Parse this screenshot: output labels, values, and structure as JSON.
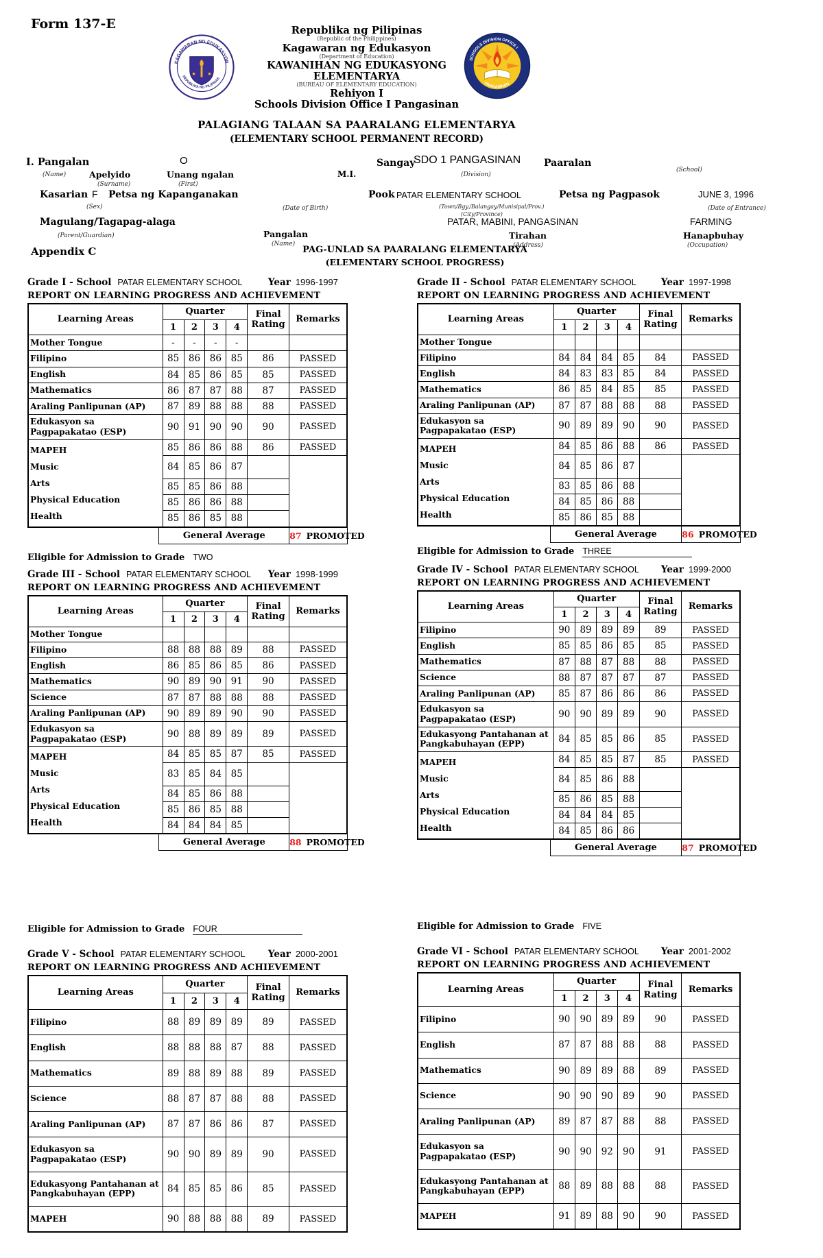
{
  "header": {
    "form_no": "Form 137-E",
    "line1": "Republika ng Pilipinas",
    "line1_sub": "(Republic of the Philippines)",
    "line2": "Kagawaran ng Edukasyon",
    "line2_sub": "(Department of Education)",
    "line3": "KAWANIHAN NG EDUKASYONG ELEMENTARYA",
    "line3_sub": "(BUREAU OF ELEMENTARY EDUCATION)",
    "line4": "Rehiyon I",
    "line5": "Schools Division Office I Pangasinan",
    "title1": "PALAGIANG TALAAN SA PAARALANG ELEMENTARYA",
    "title2": "(ELEMENTARY SCHOOL PERMANENT RECORD)",
    "left_seal_top": "KAGAWARAN NG EDUKASYON",
    "left_seal_bottom": "REPUBLIKA NG PILIPINAS",
    "right_seal_top": "SCHOOLS DIVISION OFFICE I",
    "right_seal_bottom": "PANGASINAN"
  },
  "student": {
    "pangalan_label": "I. Pangalan",
    "name_sub": "(Name)",
    "apelyido_label": "Apelyido",
    "surname_sub": "(Surname)",
    "first_name_value": "O",
    "unang_ngalan_label": "Unang ngalan",
    "first_sub": "(First)",
    "mi_label": "M.I.",
    "sangay_label": "Sangay",
    "division_value": "SDO 1 PANGASINAN",
    "division_sub": "(Division)",
    "paaralan_label": "Paaralan",
    "school_sub": "(School)",
    "kasarian_label": "Kasarian",
    "sex_value": "F",
    "sex_sub": "(Sex)",
    "birthdate_label": "Petsa ng Kapanganakan",
    "birthdate_sub": "(Date of Birth)",
    "pook_label": "Pook",
    "pook_value": "PATAR ELEMENTARY SCHOOL",
    "pook_sub1": "(Town/Bgy./Balangay/Munisipal/Prov.)",
    "pook_sub2": "(City/Province)",
    "entrance_label": "Petsa ng Pagpasok",
    "entrance_value": "JUNE 3, 1996",
    "entrance_sub": "(Date of Entrance)",
    "guardian_label": "Magulang/Tagapag-alaga",
    "guardian_sub": "(Parent/Guardian)",
    "guardian_name_label": "Pangalan",
    "guardian_name_sub": "(Name)",
    "address_value": "PATAR, MABINI, PANGASINAN",
    "address_label": "Tirahan",
    "address_sub": "(Address)",
    "occupation_value": "FARMING",
    "occupation_label": "Hanapbuhay",
    "occupation_sub": "(Occupation)"
  },
  "progress": {
    "appendix": "Appendix C",
    "title1": "PAG-UNLAD SA PAARALANG ELEMENTARYA",
    "title2": "(ELEMENTARY SCHOOL PROGRESS)"
  },
  "table_headers": {
    "learning_areas": "Learning Areas",
    "quarter": "Quarter",
    "quarter_cols": [
      "1",
      "2",
      "3",
      "4"
    ],
    "final_rating": [
      "Final",
      "Rating"
    ],
    "remarks": "Remarks",
    "general_average": "General Average"
  },
  "grades": [
    {
      "label": "Grade I - School",
      "school": "PATAR ELEMENTARY SCHOOL",
      "year_label": "Year",
      "year": "1996-1997",
      "report_title": "REPORT ON LEARNING PROGRESS AND ACHIEVEMENT",
      "rows": [
        {
          "area": "Mother Tongue",
          "q": [
            "-",
            "-",
            "-",
            "-"
          ],
          "final": "",
          "remarks": ""
        },
        {
          "area": "Filipino",
          "q": [
            "85",
            "86",
            "86",
            "85"
          ],
          "final": "86",
          "remarks": "PASSED"
        },
        {
          "area": "English",
          "q": [
            "84",
            "85",
            "86",
            "85"
          ],
          "final": "85",
          "remarks": "PASSED"
        },
        {
          "area": "Mathematics",
          "q": [
            "86",
            "87",
            "87",
            "88"
          ],
          "final": "87",
          "remarks": "PASSED"
        },
        {
          "area": "Araling Panlipunan (AP)",
          "q": [
            "87",
            "89",
            "88",
            "88"
          ],
          "final": "88",
          "remarks": "PASSED"
        },
        {
          "area": "Edukasyon sa Pagpapakatao (ESP)",
          "q": [
            "90",
            "91",
            "90",
            "90"
          ],
          "final": "90",
          "remarks": "PASSED"
        }
      ],
      "mapeh_block": {
        "labels": [
          "MAPEH",
          "Music",
          "Arts",
          "Physical Education",
          "Health"
        ],
        "rows": [
          [
            "85",
            "86",
            "86",
            "88"
          ],
          [
            "84",
            "85",
            "86",
            "87"
          ],
          [
            "85",
            "85",
            "86",
            "88"
          ],
          [
            "85",
            "86",
            "86",
            "88"
          ],
          [
            "85",
            "86",
            "85",
            "88"
          ]
        ],
        "final": "86",
        "remarks": "PASSED"
      },
      "general_average": {
        "value": "87",
        "remarks": "PROMOTED"
      }
    },
    {
      "label": "Grade II - School",
      "school": "PATAR ELEMENTARY SCHOOL",
      "year_label": "Year",
      "year": "1997-1998",
      "report_title": "REPORT ON LEARNING PROGRESS AND ACHIEVEMENT",
      "rows": [
        {
          "area": "Mother Tongue",
          "q": [
            "",
            "",
            "",
            ""
          ],
          "final": "",
          "remarks": ""
        },
        {
          "area": "Filipino",
          "q": [
            "84",
            "84",
            "84",
            "85"
          ],
          "final": "84",
          "remarks": "PASSED"
        },
        {
          "area": "English",
          "q": [
            "84",
            "83",
            "83",
            "85"
          ],
          "final": "84",
          "remarks": "PASSED"
        },
        {
          "area": "Mathematics",
          "q": [
            "86",
            "85",
            "84",
            "85"
          ],
          "final": "85",
          "remarks": "PASSED"
        },
        {
          "area": "Araling Panlipunan (AP)",
          "q": [
            "87",
            "87",
            "88",
            "88"
          ],
          "final": "88",
          "remarks": "PASSED"
        },
        {
          "area": "Edukasyon sa Pagpapakatao (ESP)",
          "q": [
            "90",
            "89",
            "89",
            "90"
          ],
          "final": "90",
          "remarks": "PASSED"
        }
      ],
      "mapeh_block": {
        "labels": [
          "MAPEH",
          "Music",
          "Arts",
          "Physical Education",
          "Health"
        ],
        "rows": [
          [
            "84",
            "85",
            "86",
            "88"
          ],
          [
            "84",
            "85",
            "86",
            "87"
          ],
          [
            "83",
            "85",
            "86",
            "88"
          ],
          [
            "84",
            "85",
            "86",
            "88"
          ],
          [
            "85",
            "86",
            "85",
            "88"
          ]
        ],
        "final": "86",
        "remarks": "PASSED"
      },
      "general_average": {
        "value": "86",
        "remarks": "PROMOTED"
      }
    },
    {
      "label": "Grade III - School",
      "school": "PATAR ELEMENTARY SCHOOL",
      "year_label": "Year",
      "year": "1998-1999",
      "report_title": "REPORT ON LEARNING PROGRESS AND ACHIEVEMENT",
      "rows": [
        {
          "area": "Mother Tongue",
          "q": [
            "",
            "",
            "",
            ""
          ],
          "final": "",
          "remarks": ""
        },
        {
          "area": "Filipino",
          "q": [
            "88",
            "88",
            "88",
            "89"
          ],
          "final": "88",
          "remarks": "PASSED"
        },
        {
          "area": "English",
          "q": [
            "86",
            "85",
            "86",
            "85"
          ],
          "final": "86",
          "remarks": "PASSED"
        },
        {
          "area": "Mathematics",
          "q": [
            "90",
            "89",
            "90",
            "91"
          ],
          "final": "90",
          "remarks": "PASSED"
        },
        {
          "area": "Science",
          "q": [
            "87",
            "87",
            "88",
            "88"
          ],
          "final": "88",
          "remarks": "PASSED"
        },
        {
          "area": "Araling Panlipunan (AP)",
          "q": [
            "90",
            "89",
            "89",
            "90"
          ],
          "final": "90",
          "remarks": "PASSED"
        },
        {
          "area": "Edukasyon sa Pagpapakatao (ESP)",
          "q": [
            "90",
            "88",
            "89",
            "89"
          ],
          "final": "89",
          "remarks": "PASSED"
        }
      ],
      "mapeh_block": {
        "labels": [
          "MAPEH",
          "Music",
          "Arts",
          "Physical Education",
          "Health"
        ],
        "rows": [
          [
            "84",
            "85",
            "85",
            "87"
          ],
          [
            "83",
            "85",
            "84",
            "85"
          ],
          [
            "84",
            "85",
            "86",
            "88"
          ],
          [
            "85",
            "86",
            "85",
            "88"
          ],
          [
            "84",
            "84",
            "84",
            "85"
          ]
        ],
        "final": "85",
        "remarks": "PASSED"
      },
      "general_average": {
        "value": "88",
        "remarks": "PROMOTED"
      }
    },
    {
      "label": "Grade IV - School",
      "school": "PATAR ELEMENTARY SCHOOL",
      "year_label": "Year",
      "year": "1999-2000",
      "report_title": "REPORT ON LEARNING PROGRESS AND ACHIEVEMENT",
      "rows": [
        {
          "area": "Filipino",
          "q": [
            "90",
            "89",
            "89",
            "89"
          ],
          "final": "89",
          "remarks": "PASSED"
        },
        {
          "area": "English",
          "q": [
            "85",
            "85",
            "86",
            "85"
          ],
          "final": "85",
          "remarks": "PASSED"
        },
        {
          "area": "Mathematics",
          "q": [
            "87",
            "88",
            "87",
            "88"
          ],
          "final": "88",
          "remarks": "PASSED"
        },
        {
          "area": "Science",
          "q": [
            "88",
            "87",
            "87",
            "87"
          ],
          "final": "87",
          "remarks": "PASSED"
        },
        {
          "area": "Araling Panlipunan (AP)",
          "q": [
            "85",
            "87",
            "86",
            "86"
          ],
          "final": "86",
          "remarks": "PASSED"
        },
        {
          "area": "Edukasyon sa Pagpapakatao (ESP)",
          "q": [
            "90",
            "90",
            "89",
            "89"
          ],
          "final": "90",
          "remarks": "PASSED"
        },
        {
          "area": "Edukasyong Pantahanan at Pangkabuhayan (EPP)",
          "q": [
            "84",
            "85",
            "85",
            "86"
          ],
          "final": "85",
          "remarks": "PASSED"
        }
      ],
      "mapeh_block": {
        "labels": [
          "MAPEH",
          "Music",
          "Arts",
          "Physical Education",
          "Health"
        ],
        "rows": [
          [
            "84",
            "85",
            "85",
            "87"
          ],
          [
            "84",
            "85",
            "86",
            "88"
          ],
          [
            "85",
            "86",
            "85",
            "88"
          ],
          [
            "84",
            "84",
            "84",
            "85"
          ],
          [
            "84",
            "85",
            "86",
            "86"
          ]
        ],
        "final": "85",
        "remarks": "PASSED"
      },
      "general_average": {
        "value": "87",
        "remarks": "PROMOTED"
      }
    },
    {
      "label": "Grade V - School",
      "school": "PATAR ELEMENTARY SCHOOL",
      "year_label": "Year",
      "year": "2000-2001",
      "report_title": "REPORT ON LEARNING PROGRESS AND ACHIEVEMENT",
      "rows": [
        {
          "area": "Filipino",
          "q": [
            "88",
            "89",
            "89",
            "89"
          ],
          "final": "89",
          "remarks": "PASSED"
        },
        {
          "area": "English",
          "q": [
            "88",
            "88",
            "88",
            "87"
          ],
          "final": "88",
          "remarks": "PASSED"
        },
        {
          "area": "Mathematics",
          "q": [
            "89",
            "88",
            "89",
            "88"
          ],
          "final": "89",
          "remarks": "PASSED"
        },
        {
          "area": "Science",
          "q": [
            "88",
            "87",
            "87",
            "88"
          ],
          "final": "88",
          "remarks": "PASSED"
        },
        {
          "area": "Araling Panlipunan (AP)",
          "q": [
            "87",
            "87",
            "86",
            "86"
          ],
          "final": "87",
          "remarks": "PASSED"
        },
        {
          "area": "Edukasyon sa Pagpapakatao (ESP)",
          "q": [
            "90",
            "90",
            "89",
            "89"
          ],
          "final": "90",
          "remarks": "PASSED"
        },
        {
          "area": "Edukasyong Pantahanan at Pangkabuhayan (EPP)",
          "q": [
            "84",
            "85",
            "85",
            "86"
          ],
          "final": "85",
          "remarks": "PASSED"
        },
        {
          "area": "MAPEH",
          "q": [
            "90",
            "88",
            "88",
            "88"
          ],
          "final": "89",
          "remarks": "PASSED"
        }
      ]
    },
    {
      "label": "Grade VI - School",
      "school": "PATAR ELEMENTARY SCHOOL",
      "year_label": "Year",
      "year": "2001-2002",
      "report_title": "REPORT ON LEARNING PROGRESS AND ACHIEVEMENT",
      "rows": [
        {
          "area": "Filipino",
          "q": [
            "90",
            "90",
            "89",
            "89"
          ],
          "final": "90",
          "remarks": "PASSED"
        },
        {
          "area": "English",
          "q": [
            "87",
            "87",
            "88",
            "88"
          ],
          "final": "88",
          "remarks": "PASSED"
        },
        {
          "area": "Mathematics",
          "q": [
            "90",
            "89",
            "89",
            "88"
          ],
          "final": "89",
          "remarks": "PASSED"
        },
        {
          "area": "Science",
          "q": [
            "90",
            "90",
            "90",
            "89"
          ],
          "final": "90",
          "remarks": "PASSED"
        },
        {
          "area": "Araling Panlipunan (AP)",
          "q": [
            "89",
            "87",
            "87",
            "88"
          ],
          "final": "88",
          "remarks": "PASSED"
        },
        {
          "area": "Edukasyon sa Pagpapakatao (ESP)",
          "q": [
            "90",
            "90",
            "92",
            "90"
          ],
          "final": "91",
          "remarks": "PASSED"
        },
        {
          "area": "Edukasyong Pantahanan at Pangkabuhayan (EPP)",
          "q": [
            "88",
            "89",
            "88",
            "88"
          ],
          "final": "88",
          "remarks": "PASSED"
        },
        {
          "area": "MAPEH",
          "q": [
            "91",
            "89",
            "88",
            "90"
          ],
          "final": "90",
          "remarks": "PASSED"
        }
      ]
    }
  ],
  "eligibility": [
    {
      "label": "Eligible for Admission to Grade",
      "value": "TWO",
      "underline": false
    },
    {
      "label": "Eligible for Admission to Grade",
      "value": "THREE",
      "underline": true
    },
    {
      "label": "Eligible for Admission to Grade",
      "value": "FOUR",
      "underline": true
    },
    {
      "label": "Eligible for Admission to Grade",
      "value": "FIVE",
      "underline": false
    }
  ],
  "colors": {
    "general_average_red": "#e51b1b",
    "seal_navy": "#342a85",
    "seal_gold": "#f7c722",
    "seal_flame": "#e23c12"
  }
}
